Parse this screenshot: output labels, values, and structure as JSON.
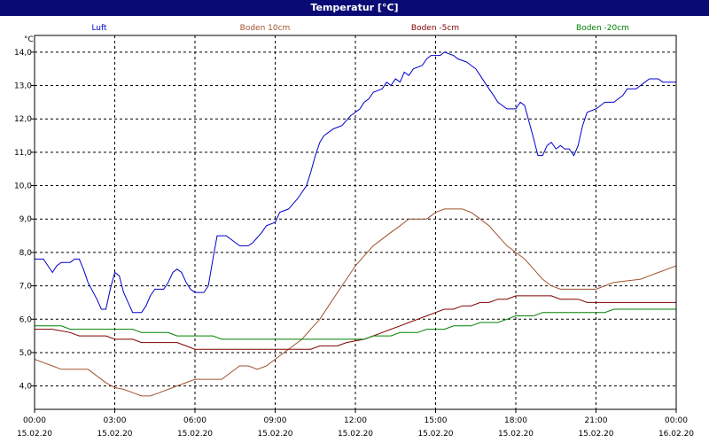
{
  "window": {
    "title": "Temperatur [°C]"
  },
  "chart_data": {
    "type": "line",
    "title": "Temperatur [°C]",
    "ylabel": "°C",
    "ylim": [
      3.3,
      14.5
    ],
    "yticks": [
      "4,0",
      "5,0",
      "6,0",
      "7,0",
      "8,0",
      "9,0",
      "10,0",
      "11,0",
      "12,0",
      "13,0",
      "14,0"
    ],
    "xlim_hours": [
      0,
      24
    ],
    "xticks": [
      {
        "time": "00:00",
        "date": "15.02.20"
      },
      {
        "time": "03:00",
        "date": "15.02.20"
      },
      {
        "time": "06:00",
        "date": "15.02.20"
      },
      {
        "time": "09:00",
        "date": "15.02.20"
      },
      {
        "time": "12:00",
        "date": "15.02.20"
      },
      {
        "time": "15:00",
        "date": "15.02.20"
      },
      {
        "time": "18:00",
        "date": "15.02.20"
      },
      {
        "time": "21:00",
        "date": "15.02.20"
      },
      {
        "time": "00:00",
        "date": "16.02.20"
      }
    ],
    "grid": true,
    "legend": "top",
    "series": [
      {
        "name": "Luft",
        "color": "#0000cc",
        "points": [
          [
            0,
            7.8
          ],
          [
            0.33,
            7.8
          ],
          [
            0.5,
            7.6
          ],
          [
            0.67,
            7.4
          ],
          [
            0.83,
            7.6
          ],
          [
            1.0,
            7.7
          ],
          [
            1.33,
            7.7
          ],
          [
            1.5,
            7.8
          ],
          [
            1.67,
            7.8
          ],
          [
            1.83,
            7.5
          ],
          [
            2.0,
            7.1
          ],
          [
            2.33,
            6.6
          ],
          [
            2.5,
            6.3
          ],
          [
            2.67,
            6.3
          ],
          [
            2.83,
            6.9
          ],
          [
            3.0,
            7.4
          ],
          [
            3.17,
            7.3
          ],
          [
            3.33,
            6.8
          ],
          [
            3.5,
            6.5
          ],
          [
            3.67,
            6.2
          ],
          [
            4.0,
            6.2
          ],
          [
            4.17,
            6.4
          ],
          [
            4.33,
            6.7
          ],
          [
            4.5,
            6.9
          ],
          [
            4.83,
            6.9
          ],
          [
            5.0,
            7.1
          ],
          [
            5.17,
            7.4
          ],
          [
            5.33,
            7.5
          ],
          [
            5.5,
            7.4
          ],
          [
            5.67,
            7.1
          ],
          [
            5.83,
            6.9
          ],
          [
            6.0,
            6.8
          ],
          [
            6.33,
            6.8
          ],
          [
            6.5,
            7.0
          ],
          [
            6.67,
            7.8
          ],
          [
            6.83,
            8.5
          ],
          [
            7.17,
            8.5
          ],
          [
            7.5,
            8.3
          ],
          [
            7.67,
            8.2
          ],
          [
            8.0,
            8.2
          ],
          [
            8.17,
            8.3
          ],
          [
            8.5,
            8.6
          ],
          [
            8.67,
            8.8
          ],
          [
            9.0,
            8.9
          ],
          [
            9.17,
            9.2
          ],
          [
            9.5,
            9.3
          ],
          [
            9.83,
            9.6
          ],
          [
            10.17,
            10.0
          ],
          [
            10.33,
            10.4
          ],
          [
            10.5,
            10.9
          ],
          [
            10.67,
            11.3
          ],
          [
            10.83,
            11.5
          ],
          [
            11.0,
            11.6
          ],
          [
            11.17,
            11.7
          ],
          [
            11.5,
            11.8
          ],
          [
            11.83,
            12.1
          ],
          [
            12.17,
            12.3
          ],
          [
            12.33,
            12.5
          ],
          [
            12.5,
            12.6
          ],
          [
            12.67,
            12.8
          ],
          [
            13.0,
            12.9
          ],
          [
            13.17,
            13.1
          ],
          [
            13.33,
            13.0
          ],
          [
            13.5,
            13.2
          ],
          [
            13.67,
            13.1
          ],
          [
            13.83,
            13.4
          ],
          [
            14.0,
            13.3
          ],
          [
            14.17,
            13.5
          ],
          [
            14.5,
            13.6
          ],
          [
            14.67,
            13.8
          ],
          [
            14.83,
            13.9
          ],
          [
            15.17,
            13.9
          ],
          [
            15.33,
            14.0
          ],
          [
            15.67,
            13.9
          ],
          [
            15.83,
            13.8
          ],
          [
            16.17,
            13.7
          ],
          [
            16.33,
            13.6
          ],
          [
            16.5,
            13.5
          ],
          [
            16.67,
            13.3
          ],
          [
            16.83,
            13.1
          ],
          [
            17.0,
            12.9
          ],
          [
            17.17,
            12.7
          ],
          [
            17.33,
            12.5
          ],
          [
            17.67,
            12.3
          ],
          [
            18.0,
            12.3
          ],
          [
            18.17,
            12.5
          ],
          [
            18.33,
            12.4
          ],
          [
            18.5,
            11.9
          ],
          [
            18.67,
            11.4
          ],
          [
            18.83,
            10.9
          ],
          [
            19.0,
            10.9
          ],
          [
            19.17,
            11.2
          ],
          [
            19.33,
            11.3
          ],
          [
            19.5,
            11.1
          ],
          [
            19.67,
            11.2
          ],
          [
            19.83,
            11.1
          ],
          [
            20.0,
            11.1
          ],
          [
            20.17,
            10.9
          ],
          [
            20.33,
            11.2
          ],
          [
            20.5,
            11.8
          ],
          [
            20.67,
            12.2
          ],
          [
            21.0,
            12.3
          ],
          [
            21.17,
            12.4
          ],
          [
            21.33,
            12.5
          ],
          [
            21.67,
            12.5
          ],
          [
            21.83,
            12.6
          ],
          [
            22.0,
            12.7
          ],
          [
            22.17,
            12.9
          ],
          [
            22.5,
            12.9
          ],
          [
            22.83,
            13.1
          ],
          [
            23.0,
            13.2
          ],
          [
            23.33,
            13.2
          ],
          [
            23.5,
            13.1
          ],
          [
            23.67,
            13.1
          ],
          [
            24.0,
            13.1
          ]
        ]
      },
      {
        "name": "Boden 10cm",
        "color": "#a0522d",
        "points": [
          [
            0,
            4.8
          ],
          [
            0.33,
            4.7
          ],
          [
            0.67,
            4.6
          ],
          [
            1.0,
            4.5
          ],
          [
            2.0,
            4.5
          ],
          [
            2.33,
            4.3
          ],
          [
            2.67,
            4.1
          ],
          [
            3.0,
            3.95
          ],
          [
            3.33,
            3.9
          ],
          [
            3.67,
            3.8
          ],
          [
            4.0,
            3.7
          ],
          [
            4.33,
            3.7
          ],
          [
            4.67,
            3.8
          ],
          [
            5.0,
            3.9
          ],
          [
            5.33,
            4.0
          ],
          [
            5.67,
            4.1
          ],
          [
            6.0,
            4.2
          ],
          [
            7.0,
            4.2
          ],
          [
            7.33,
            4.4
          ],
          [
            7.67,
            4.6
          ],
          [
            8.0,
            4.6
          ],
          [
            8.33,
            4.5
          ],
          [
            8.67,
            4.6
          ],
          [
            9.0,
            4.8
          ],
          [
            9.33,
            5.0
          ],
          [
            9.67,
            5.2
          ],
          [
            10.0,
            5.4
          ],
          [
            10.33,
            5.7
          ],
          [
            10.67,
            6.0
          ],
          [
            11.0,
            6.4
          ],
          [
            11.33,
            6.8
          ],
          [
            11.67,
            7.2
          ],
          [
            12.0,
            7.6
          ],
          [
            12.33,
            7.9
          ],
          [
            12.67,
            8.2
          ],
          [
            13.0,
            8.4
          ],
          [
            13.33,
            8.6
          ],
          [
            13.67,
            8.8
          ],
          [
            14.0,
            9.0
          ],
          [
            14.67,
            9.0
          ],
          [
            15.0,
            9.2
          ],
          [
            15.33,
            9.3
          ],
          [
            16.0,
            9.3
          ],
          [
            16.33,
            9.2
          ],
          [
            16.67,
            9.0
          ],
          [
            17.0,
            8.8
          ],
          [
            17.33,
            8.5
          ],
          [
            17.67,
            8.2
          ],
          [
            18.0,
            8.0
          ],
          [
            18.33,
            7.8
          ],
          [
            18.67,
            7.5
          ],
          [
            19.0,
            7.2
          ],
          [
            19.33,
            7.0
          ],
          [
            19.67,
            6.9
          ],
          [
            21.0,
            6.9
          ],
          [
            21.33,
            7.0
          ],
          [
            21.67,
            7.1
          ],
          [
            22.67,
            7.2
          ],
          [
            23.0,
            7.3
          ],
          [
            23.33,
            7.4
          ],
          [
            23.67,
            7.5
          ],
          [
            24.0,
            7.6
          ]
        ]
      },
      {
        "name": "Boden -5cm",
        "color": "#800000",
        "points": [
          [
            0,
            5.7
          ],
          [
            0.67,
            5.7
          ],
          [
            1.33,
            5.6
          ],
          [
            1.67,
            5.5
          ],
          [
            2.67,
            5.5
          ],
          [
            3.0,
            5.4
          ],
          [
            3.67,
            5.4
          ],
          [
            4.0,
            5.3
          ],
          [
            5.33,
            5.3
          ],
          [
            5.67,
            5.2
          ],
          [
            6.0,
            5.1
          ],
          [
            10.33,
            5.1
          ],
          [
            10.67,
            5.2
          ],
          [
            11.33,
            5.2
          ],
          [
            11.67,
            5.3
          ],
          [
            12.33,
            5.4
          ],
          [
            12.67,
            5.5
          ],
          [
            13.0,
            5.6
          ],
          [
            13.33,
            5.7
          ],
          [
            13.67,
            5.8
          ],
          [
            14.0,
            5.9
          ],
          [
            14.33,
            6.0
          ],
          [
            14.67,
            6.1
          ],
          [
            15.0,
            6.2
          ],
          [
            15.33,
            6.3
          ],
          [
            15.67,
            6.3
          ],
          [
            16.0,
            6.4
          ],
          [
            16.33,
            6.4
          ],
          [
            16.67,
            6.5
          ],
          [
            17.0,
            6.5
          ],
          [
            17.33,
            6.6
          ],
          [
            17.67,
            6.6
          ],
          [
            18.0,
            6.7
          ],
          [
            19.33,
            6.7
          ],
          [
            19.67,
            6.6
          ],
          [
            20.33,
            6.6
          ],
          [
            20.67,
            6.5
          ],
          [
            24.0,
            6.5
          ]
        ]
      },
      {
        "name": "Boden -20cm",
        "color": "#008000",
        "points": [
          [
            0,
            5.8
          ],
          [
            1.0,
            5.8
          ],
          [
            1.33,
            5.7
          ],
          [
            3.67,
            5.7
          ],
          [
            4.0,
            5.6
          ],
          [
            5.0,
            5.6
          ],
          [
            5.33,
            5.5
          ],
          [
            6.67,
            5.5
          ],
          [
            7.0,
            5.4
          ],
          [
            10.67,
            5.4
          ],
          [
            12.33,
            5.4
          ],
          [
            12.67,
            5.5
          ],
          [
            13.33,
            5.5
          ],
          [
            13.67,
            5.6
          ],
          [
            14.33,
            5.6
          ],
          [
            14.67,
            5.7
          ],
          [
            15.33,
            5.7
          ],
          [
            15.67,
            5.8
          ],
          [
            16.33,
            5.8
          ],
          [
            16.67,
            5.9
          ],
          [
            17.33,
            5.9
          ],
          [
            17.67,
            6.0
          ],
          [
            18.0,
            6.1
          ],
          [
            18.67,
            6.1
          ],
          [
            19.0,
            6.2
          ],
          [
            21.33,
            6.2
          ],
          [
            21.67,
            6.3
          ],
          [
            24.0,
            6.3
          ]
        ]
      }
    ]
  }
}
